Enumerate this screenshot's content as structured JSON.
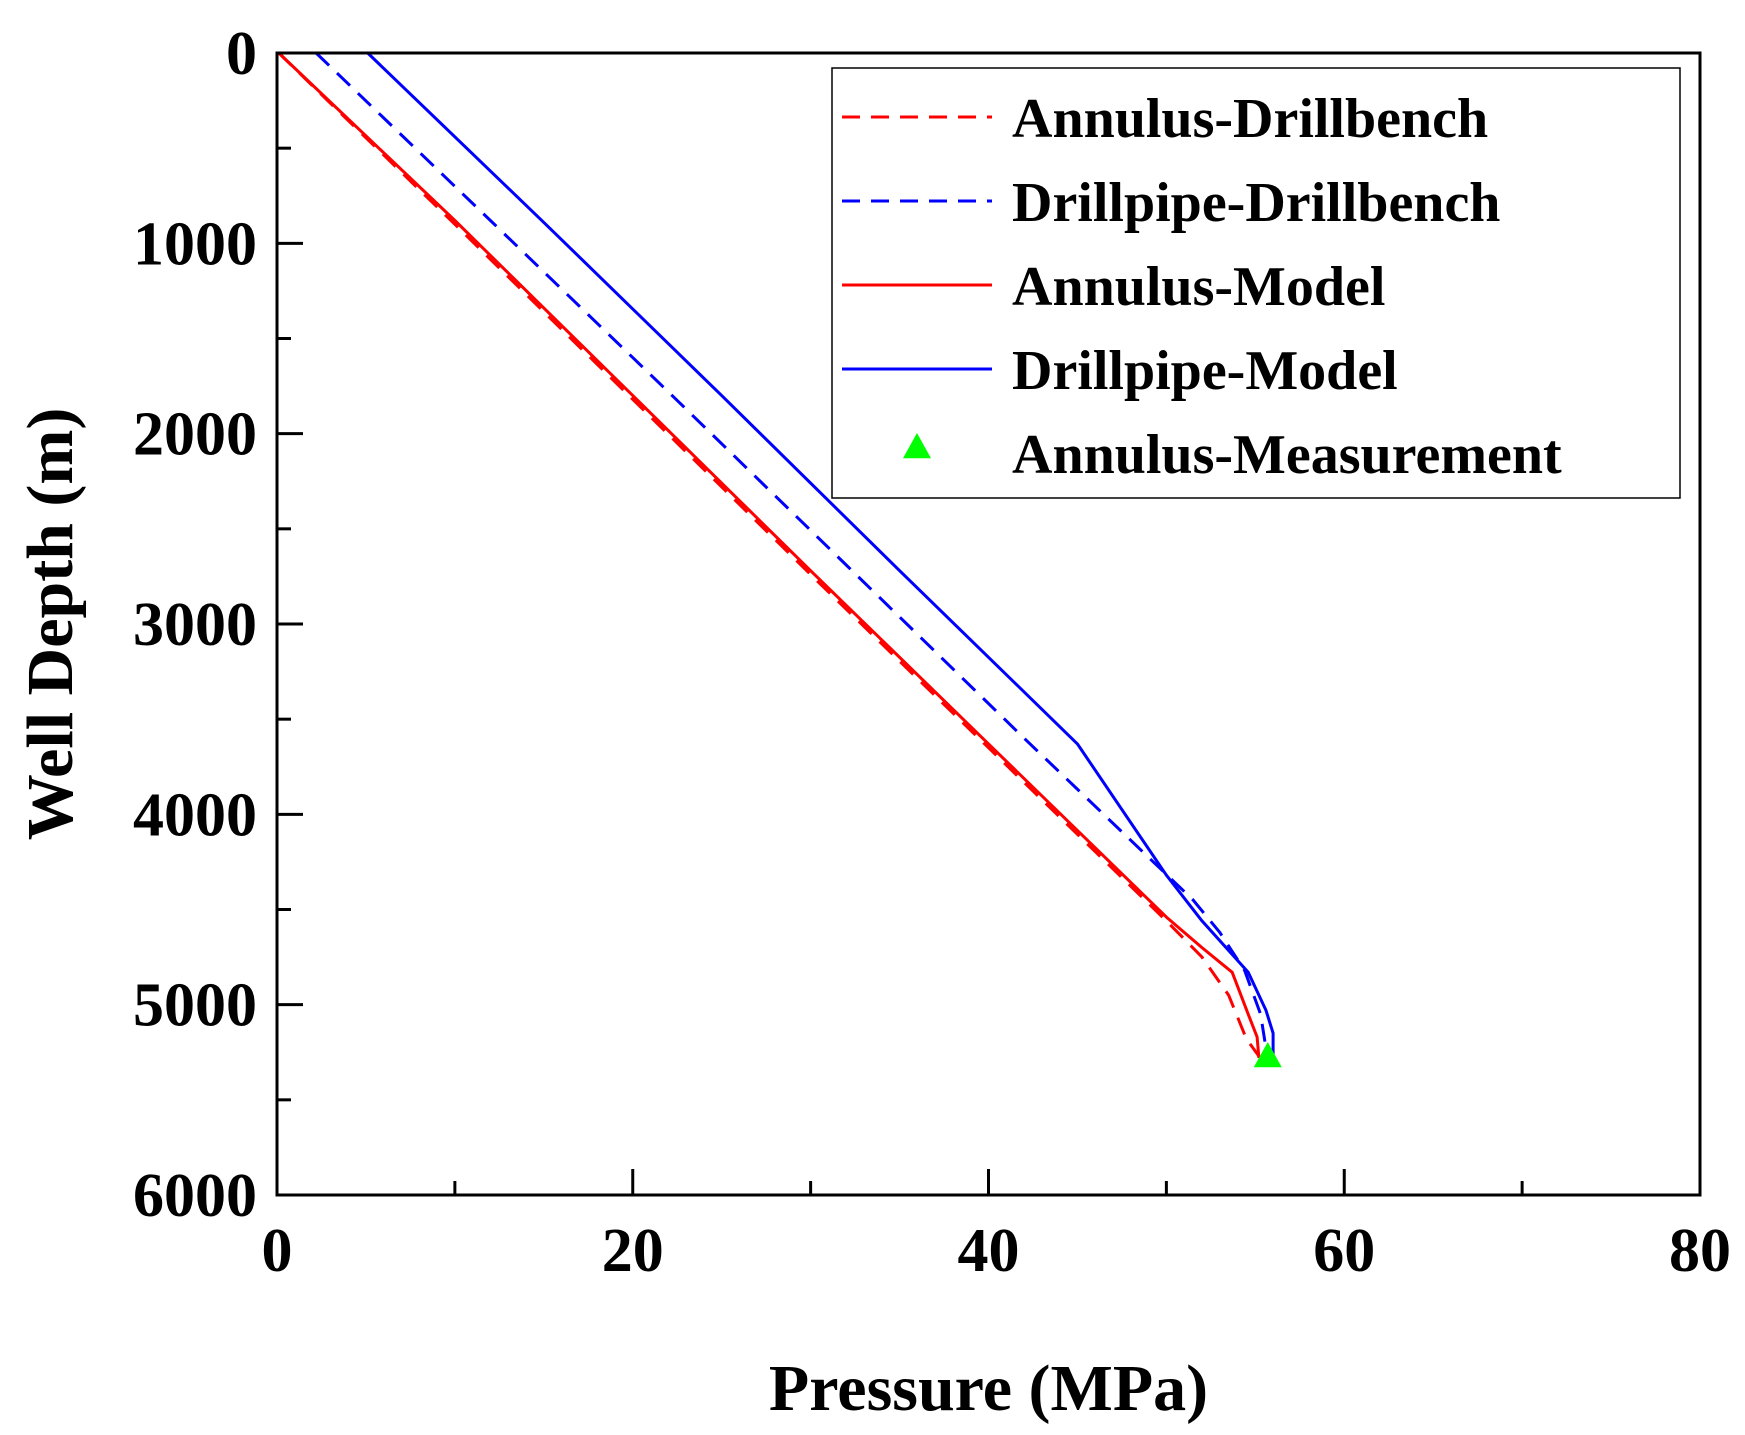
{
  "chart_data": {
    "type": "line",
    "title": "",
    "xlabel": "Pressure (MPa)",
    "ylabel": "Well Depth (m)",
    "xlim": [
      0,
      80
    ],
    "ylim": [
      6000,
      0
    ],
    "y_inverted": true,
    "x_ticks": [
      0,
      20,
      40,
      60,
      80
    ],
    "y_ticks": [
      0,
      1000,
      2000,
      3000,
      4000,
      5000,
      6000
    ],
    "x_tick_labels": [
      "0",
      "20",
      "40",
      "60",
      "80"
    ],
    "y_tick_labels": [
      "0",
      "1000",
      "2000",
      "3000",
      "4000",
      "5000",
      "6000"
    ],
    "x_minor_step": 10,
    "y_minor_step": 500,
    "grid": false,
    "legend_position": "top-right",
    "series": [
      {
        "name": "Annulus-Drillbench",
        "color": "#ff0000",
        "style": "dashed",
        "marker": "none",
        "points": [
          [
            0.1,
            0
          ],
          [
            10,
            900
          ],
          [
            20,
            1820
          ],
          [
            30,
            2740
          ],
          [
            40,
            3650
          ],
          [
            50,
            4560
          ],
          [
            52,
            4750
          ],
          [
            53.5,
            4950
          ],
          [
            54.5,
            5180
          ],
          [
            55.2,
            5270
          ]
        ]
      },
      {
        "name": "Drillpipe-Drillbench",
        "color": "#0000ff",
        "style": "dashed",
        "marker": "none",
        "points": [
          [
            2.2,
            0
          ],
          [
            12,
            880
          ],
          [
            22,
            1780
          ],
          [
            32,
            2690
          ],
          [
            42,
            3600
          ],
          [
            51.5,
            4450
          ],
          [
            53,
            4620
          ],
          [
            54.4,
            4820
          ],
          [
            55.3,
            5050
          ],
          [
            55.7,
            5290
          ]
        ]
      },
      {
        "name": "Annulus-Model",
        "color": "#ff0000",
        "style": "solid",
        "marker": "none",
        "points": [
          [
            0.1,
            0
          ],
          [
            10,
            880
          ],
          [
            20,
            1800
          ],
          [
            30,
            2720
          ],
          [
            40,
            3630
          ],
          [
            50,
            4540
          ],
          [
            52,
            4700
          ],
          [
            53.7,
            4830
          ],
          [
            54.6,
            5050
          ],
          [
            55.1,
            5170
          ],
          [
            55.2,
            5280
          ]
        ]
      },
      {
        "name": "Drillpipe-Model",
        "color": "#0000ff",
        "style": "solid",
        "marker": "none",
        "points": [
          [
            5.1,
            0
          ],
          [
            15,
            890
          ],
          [
            25,
            1800
          ],
          [
            35,
            2720
          ],
          [
            45,
            3630
          ],
          [
            50,
            4320
          ],
          [
            52,
            4560
          ],
          [
            54.6,
            4830
          ],
          [
            55.6,
            5030
          ],
          [
            56.0,
            5150
          ],
          [
            56.0,
            5290
          ]
        ]
      },
      {
        "name": "Annulus-Measurement",
        "color": "#00ff00",
        "style": "none",
        "marker": "triangle",
        "points": [
          [
            55.7,
            5270
          ]
        ]
      }
    ]
  }
}
